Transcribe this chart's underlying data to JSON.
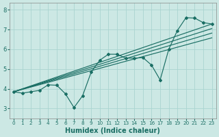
{
  "xlabel": "Humidex (Indice chaleur)",
  "ylabel": "",
  "background_color": "#cce8e4",
  "grid_color": "#aad4d0",
  "line_color": "#1a6e64",
  "xlim": [
    -0.5,
    23.5
  ],
  "ylim": [
    2.5,
    8.35
  ],
  "xticks": [
    0,
    1,
    2,
    3,
    4,
    5,
    6,
    7,
    8,
    9,
    10,
    11,
    12,
    13,
    14,
    15,
    16,
    17,
    18,
    19,
    20,
    21,
    22,
    23
  ],
  "yticks": [
    3,
    4,
    5,
    6,
    7,
    8
  ],
  "wavy_line": [
    3.85,
    3.78,
    3.85,
    3.92,
    4.2,
    4.18,
    3.75,
    3.05,
    3.65,
    4.85,
    5.45,
    5.75,
    5.75,
    5.55,
    5.55,
    5.58,
    5.2,
    4.45,
    6.0,
    6.95,
    7.6,
    7.58,
    7.35,
    7.28
  ],
  "straight_lines": [
    {
      "x0": 0,
      "y0": 3.85,
      "x1": 23,
      "y1": 7.28
    },
    {
      "x0": 0,
      "y0": 3.85,
      "x1": 23,
      "y1": 7.05
    },
    {
      "x0": 0,
      "y0": 3.85,
      "x1": 23,
      "y1": 6.82
    },
    {
      "x0": 0,
      "y0": 3.85,
      "x1": 23,
      "y1": 6.58
    }
  ]
}
